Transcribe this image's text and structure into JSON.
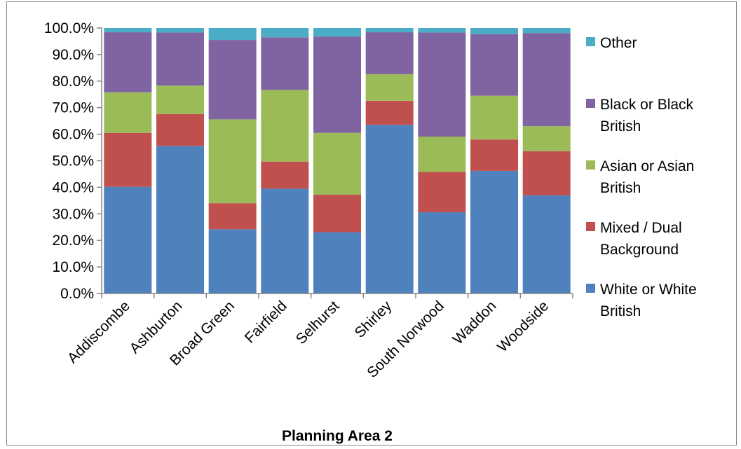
{
  "chart_data": {
    "type": "bar",
    "stacked": true,
    "percent": true,
    "xlabel": "Planning Area 2",
    "ylabel": "",
    "ylim": [
      0,
      100
    ],
    "ytick_labels": [
      "0.0%",
      "10.0%",
      "20.0%",
      "30.0%",
      "40.0%",
      "50.0%",
      "60.0%",
      "70.0%",
      "80.0%",
      "90.0%",
      "100.0%"
    ],
    "grid": false,
    "legend_position": "right",
    "categories": [
      "Addiscombe",
      "Ashburton",
      "Broad Green",
      "Fairfield",
      "Selhurst",
      "Shirley",
      "South Norwood",
      "Waddon",
      "Woodside"
    ],
    "series": [
      {
        "name": "White or White British",
        "color": "#4F81BD",
        "values": [
          40.2,
          55.6,
          24.2,
          39.5,
          23.1,
          63.5,
          30.6,
          46.2,
          37.0
        ]
      },
      {
        "name": "Mixed / Dual Background",
        "color": "#C0504D",
        "values": [
          20.3,
          12.0,
          9.8,
          10.2,
          14.1,
          9.1,
          15.2,
          11.8,
          16.6
        ]
      },
      {
        "name": "Asian or Asian British",
        "color": "#9BBB59",
        "values": [
          15.3,
          10.7,
          31.6,
          27.0,
          23.3,
          10.0,
          13.3,
          16.5,
          9.4
        ]
      },
      {
        "name": "Black or Black British",
        "color": "#8064A2",
        "values": [
          22.6,
          20.0,
          29.9,
          19.8,
          36.3,
          15.8,
          39.2,
          23.2,
          35.1
        ]
      },
      {
        "name": "Other",
        "color": "#4BACC6",
        "values": [
          1.6,
          1.7,
          4.5,
          3.5,
          3.2,
          1.6,
          1.7,
          2.3,
          1.9
        ]
      }
    ],
    "legend_order": [
      "Other",
      "Black or Black British",
      "Asian or Asian British",
      "Mixed / Dual Background",
      "White or White British"
    ],
    "legend_lines": {
      "Other": [
        "Other"
      ],
      "Black or Black British": [
        "Black or Black",
        "British"
      ],
      "Asian or Asian British": [
        "Asian or Asian",
        "British"
      ],
      "Mixed / Dual Background": [
        "Mixed / Dual",
        "Background"
      ],
      "White or White British": [
        "White or White",
        "British"
      ]
    }
  }
}
